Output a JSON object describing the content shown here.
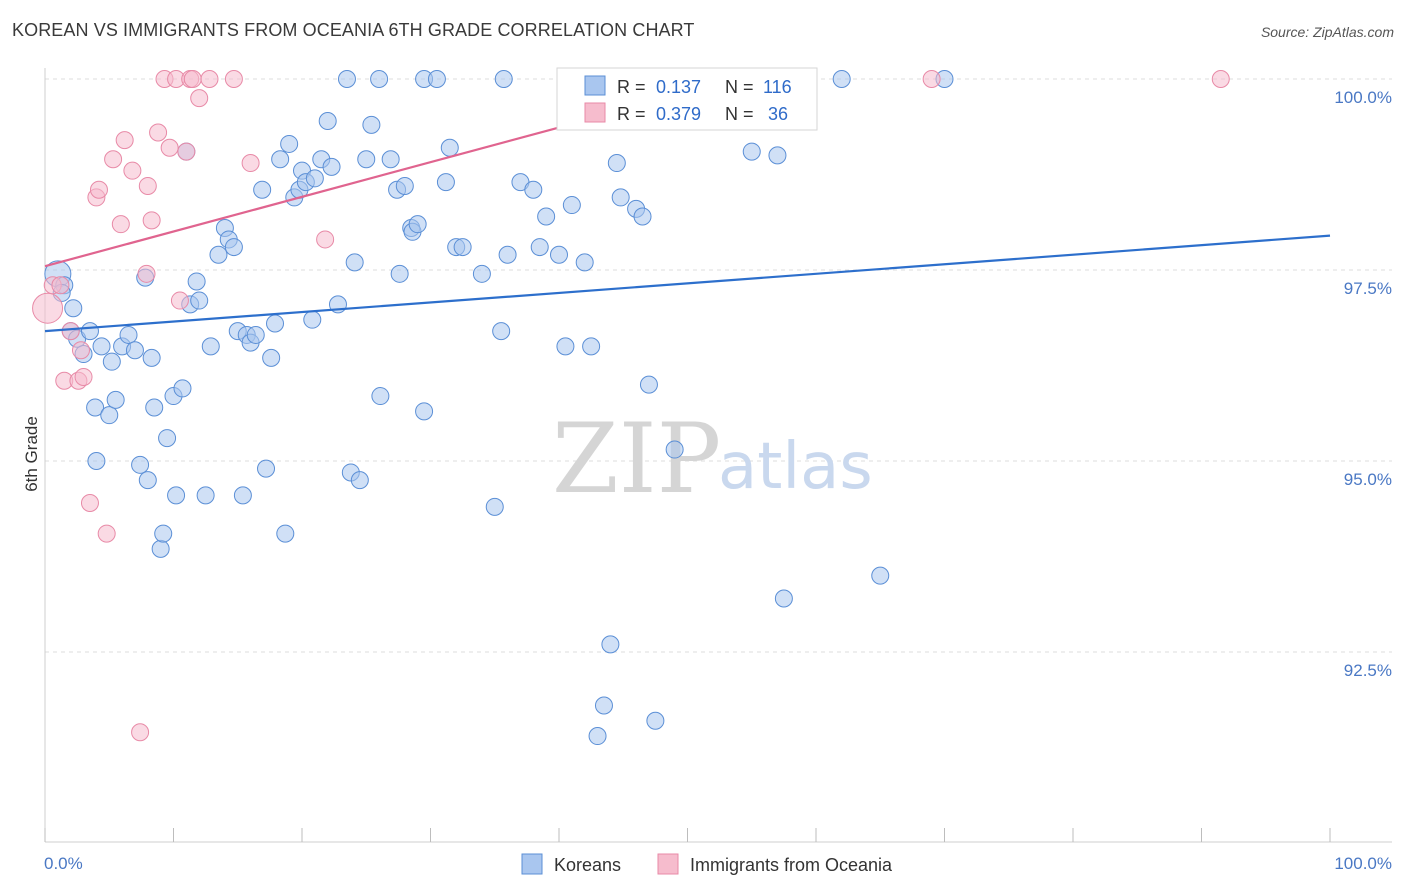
{
  "title": "KOREAN VS IMMIGRANTS FROM OCEANIA 6TH GRADE CORRELATION CHART",
  "source": "Source: ZipAtlas.com",
  "watermark": {
    "zip": "ZIP",
    "atlas": "atlas"
  },
  "colors": {
    "blue_fill": "#a9c6ef",
    "blue_stroke": "#5b8fd6",
    "blue_line": "#2d6fcc",
    "pink_fill": "#f6bccd",
    "pink_stroke": "#e88aa7",
    "pink_line": "#e0648f",
    "grid": "#dcdcdc",
    "axis_text": "#4a78c4"
  },
  "stats": [
    {
      "r_label": "R =",
      "r_value": "0.137",
      "n_label": "N =",
      "n_value": "116"
    },
    {
      "r_label": "R =",
      "r_value": "0.379",
      "n_label": "N =",
      "n_value": "36"
    }
  ],
  "chart_data": {
    "type": "scatter",
    "title": "KOREAN VS IMMIGRANTS FROM OCEANIA 6TH GRADE CORRELATION CHART",
    "xlabel": "",
    "ylabel": "6th Grade",
    "xlim": [
      0,
      100
    ],
    "ylim": [
      90.0,
      100.2
    ],
    "x_tick_labels": [
      "0.0%",
      "100.0%"
    ],
    "y_ticks": [
      92.5,
      95.0,
      97.5,
      100.0
    ],
    "y_tick_labels": [
      "92.5%",
      "95.0%",
      "97.5%",
      "100.0%"
    ],
    "grid": true,
    "legend_position": "bottom-center",
    "series": [
      {
        "name": "Koreans",
        "color": "#a9c6ef",
        "trend": {
          "x": [
            0,
            100
          ],
          "y": [
            96.7,
            97.95
          ]
        },
        "points": [
          [
            1.0,
            97.45
          ],
          [
            1.5,
            97.3
          ],
          [
            1.3,
            97.2
          ],
          [
            2.0,
            96.7
          ],
          [
            2.2,
            97.0
          ],
          [
            2.5,
            96.6
          ],
          [
            3.0,
            96.4
          ],
          [
            3.5,
            96.7
          ],
          [
            3.9,
            95.7
          ],
          [
            4.0,
            95.0
          ],
          [
            4.4,
            96.5
          ],
          [
            5.0,
            95.6
          ],
          [
            5.2,
            96.3
          ],
          [
            5.5,
            95.8
          ],
          [
            6.0,
            96.5
          ],
          [
            6.5,
            96.65
          ],
          [
            7.0,
            96.45
          ],
          [
            7.4,
            94.95
          ],
          [
            7.8,
            97.4
          ],
          [
            8.0,
            94.75
          ],
          [
            8.3,
            96.35
          ],
          [
            8.5,
            95.7
          ],
          [
            9.0,
            93.85
          ],
          [
            9.2,
            94.05
          ],
          [
            9.5,
            95.3
          ],
          [
            10.0,
            95.85
          ],
          [
            10.2,
            94.55
          ],
          [
            10.7,
            95.95
          ],
          [
            11.0,
            99.05
          ],
          [
            11.3,
            97.05
          ],
          [
            11.8,
            97.35
          ],
          [
            12.0,
            97.1
          ],
          [
            12.5,
            94.55
          ],
          [
            12.9,
            96.5
          ],
          [
            13.5,
            97.7
          ],
          [
            14.0,
            98.05
          ],
          [
            14.3,
            97.9
          ],
          [
            14.7,
            97.8
          ],
          [
            15.0,
            96.7
          ],
          [
            15.4,
            94.55
          ],
          [
            15.7,
            96.65
          ],
          [
            16.0,
            96.55
          ],
          [
            16.4,
            96.65
          ],
          [
            16.9,
            98.55
          ],
          [
            17.2,
            94.9
          ],
          [
            17.6,
            96.35
          ],
          [
            17.9,
            96.8
          ],
          [
            18.3,
            98.95
          ],
          [
            18.7,
            94.05
          ],
          [
            19.0,
            99.15
          ],
          [
            19.4,
            98.45
          ],
          [
            19.8,
            98.55
          ],
          [
            20.0,
            98.8
          ],
          [
            20.3,
            98.65
          ],
          [
            20.8,
            96.85
          ],
          [
            21.0,
            98.7
          ],
          [
            21.5,
            98.95
          ],
          [
            22.0,
            99.45
          ],
          [
            22.3,
            98.85
          ],
          [
            22.8,
            97.05
          ],
          [
            23.5,
            100.0
          ],
          [
            23.8,
            94.85
          ],
          [
            24.1,
            97.6
          ],
          [
            24.5,
            94.75
          ],
          [
            25.0,
            98.95
          ],
          [
            25.4,
            99.4
          ],
          [
            26.0,
            100.0
          ],
          [
            26.1,
            95.85
          ],
          [
            26.9,
            98.95
          ],
          [
            27.4,
            98.55
          ],
          [
            27.6,
            97.45
          ],
          [
            28.0,
            98.6
          ],
          [
            28.5,
            98.05
          ],
          [
            28.6,
            98.0
          ],
          [
            29.0,
            98.1
          ],
          [
            29.5,
            95.65
          ],
          [
            29.5,
            100.0
          ],
          [
            30.5,
            100.0
          ],
          [
            31.2,
            98.65
          ],
          [
            31.5,
            99.1
          ],
          [
            32.0,
            97.8
          ],
          [
            32.5,
            97.8
          ],
          [
            34.0,
            97.45
          ],
          [
            35.0,
            94.4
          ],
          [
            35.5,
            96.7
          ],
          [
            35.7,
            100.0
          ],
          [
            36.0,
            97.7
          ],
          [
            37.0,
            98.65
          ],
          [
            38.0,
            98.55
          ],
          [
            38.5,
            97.8
          ],
          [
            39.0,
            98.2
          ],
          [
            40.0,
            97.7
          ],
          [
            40.5,
            96.5
          ],
          [
            41.0,
            98.35
          ],
          [
            41.2,
            100.0
          ],
          [
            42.0,
            97.6
          ],
          [
            42.5,
            96.5
          ],
          [
            43.0,
            91.4
          ],
          [
            43.5,
            91.8
          ],
          [
            44.0,
            92.6
          ],
          [
            44.5,
            98.9
          ],
          [
            44.8,
            98.45
          ],
          [
            46.0,
            98.3
          ],
          [
            46.5,
            98.2
          ],
          [
            47.0,
            96.0
          ],
          [
            47.5,
            91.6
          ],
          [
            49.0,
            95.15
          ],
          [
            55.0,
            99.05
          ],
          [
            57.0,
            99.0
          ],
          [
            57.5,
            93.2
          ],
          [
            62.0,
            100.0
          ],
          [
            65.0,
            93.5
          ],
          [
            70.0,
            100.0
          ]
        ]
      },
      {
        "name": "Immigrants from Oceania",
        "color": "#f6bccd",
        "trend": {
          "x": [
            0,
            54
          ],
          "y": [
            97.55,
            100.0
          ]
        },
        "points": [
          [
            0.2,
            97.0
          ],
          [
            0.6,
            97.3
          ],
          [
            1.2,
            97.3
          ],
          [
            1.5,
            96.05
          ],
          [
            2.0,
            96.7
          ],
          [
            2.6,
            96.05
          ],
          [
            2.8,
            96.45
          ],
          [
            3.0,
            96.1
          ],
          [
            3.5,
            94.45
          ],
          [
            4.0,
            98.45
          ],
          [
            4.2,
            98.55
          ],
          [
            4.8,
            94.05
          ],
          [
            5.3,
            98.95
          ],
          [
            5.9,
            98.1
          ],
          [
            6.2,
            99.2
          ],
          [
            6.8,
            98.8
          ],
          [
            7.4,
            91.45
          ],
          [
            7.9,
            97.45
          ],
          [
            8.0,
            98.6
          ],
          [
            8.3,
            98.15
          ],
          [
            8.8,
            99.3
          ],
          [
            9.3,
            100.0
          ],
          [
            9.7,
            99.1
          ],
          [
            10.2,
            100.0
          ],
          [
            10.5,
            97.1
          ],
          [
            11.0,
            99.05
          ],
          [
            11.3,
            100.0
          ],
          [
            11.5,
            100.0
          ],
          [
            12.0,
            99.75
          ],
          [
            12.8,
            100.0
          ],
          [
            14.7,
            100.0
          ],
          [
            16.0,
            98.9
          ],
          [
            21.8,
            97.9
          ],
          [
            42.0,
            100.0
          ],
          [
            69.0,
            100.0
          ],
          [
            91.5,
            100.0
          ]
        ]
      }
    ]
  },
  "legend": [
    {
      "label": "Koreans"
    },
    {
      "label": "Immigrants from Oceania"
    }
  ]
}
